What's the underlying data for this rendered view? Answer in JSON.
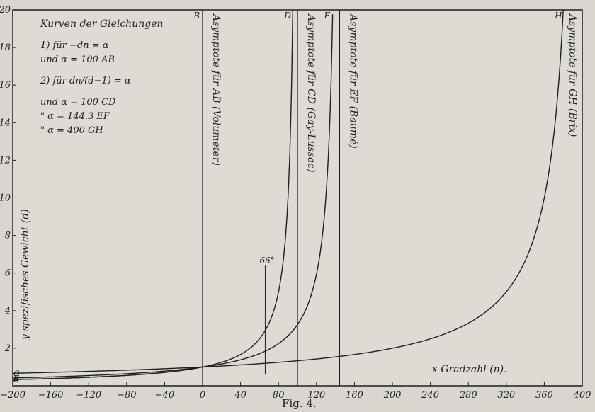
{
  "chart_data": {
    "type": "line",
    "title": "Kurven der Gleichungen",
    "figure_caption": "Fig. 4.",
    "xlabel": "x Gradzahl (n).",
    "ylabel": "y spezifisches Gewicht (d)",
    "xlim": [
      -200,
      400
    ],
    "ylim": [
      0,
      20
    ],
    "x_ticks": [
      -200,
      -160,
      -120,
      -80,
      -40,
      0,
      40,
      80,
      120,
      160,
      200,
      240,
      280,
      320,
      360,
      400
    ],
    "y_ticks": [
      2,
      4,
      6,
      8,
      10,
      12,
      14,
      16,
      18,
      20
    ],
    "grid": false,
    "legend_lines": [
      "1) für  −dn = α",
      "und   α = 100    AB",
      "2) für  dn/(d−1) = α",
      "und   α = 100     CD",
      "\"    α = 144.3    EF",
      "\"    α = 400     GH"
    ],
    "asymptotes": [
      {
        "x": 0,
        "label": "Asymptote für AB (Volumeter)"
      },
      {
        "x": 100,
        "label": "Asymptote für CD (Gay-Lussac)"
      },
      {
        "x": 144.3,
        "label": "Asymptote für EF (Baumé)"
      },
      {
        "x": 400,
        "label": "Asymptote für GH (Brix)"
      }
    ],
    "series": [
      {
        "name": "AB",
        "alpha": 100,
        "kind": "volumeter",
        "start_label": "A",
        "end_label": "B"
      },
      {
        "name": "CD",
        "alpha": 100,
        "kind": "degree",
        "start_label": "C",
        "end_label": "D"
      },
      {
        "name": "EF",
        "alpha": 144.3,
        "kind": "degree",
        "start_label": "E",
        "end_label": "F"
      },
      {
        "name": "GH",
        "alpha": 400,
        "kind": "degree",
        "start_label": "G",
        "end_label": "H"
      }
    ],
    "annotations": [
      {
        "text": "66°",
        "x": 66,
        "y_from": 0.6,
        "y_to": 6.4
      }
    ]
  }
}
